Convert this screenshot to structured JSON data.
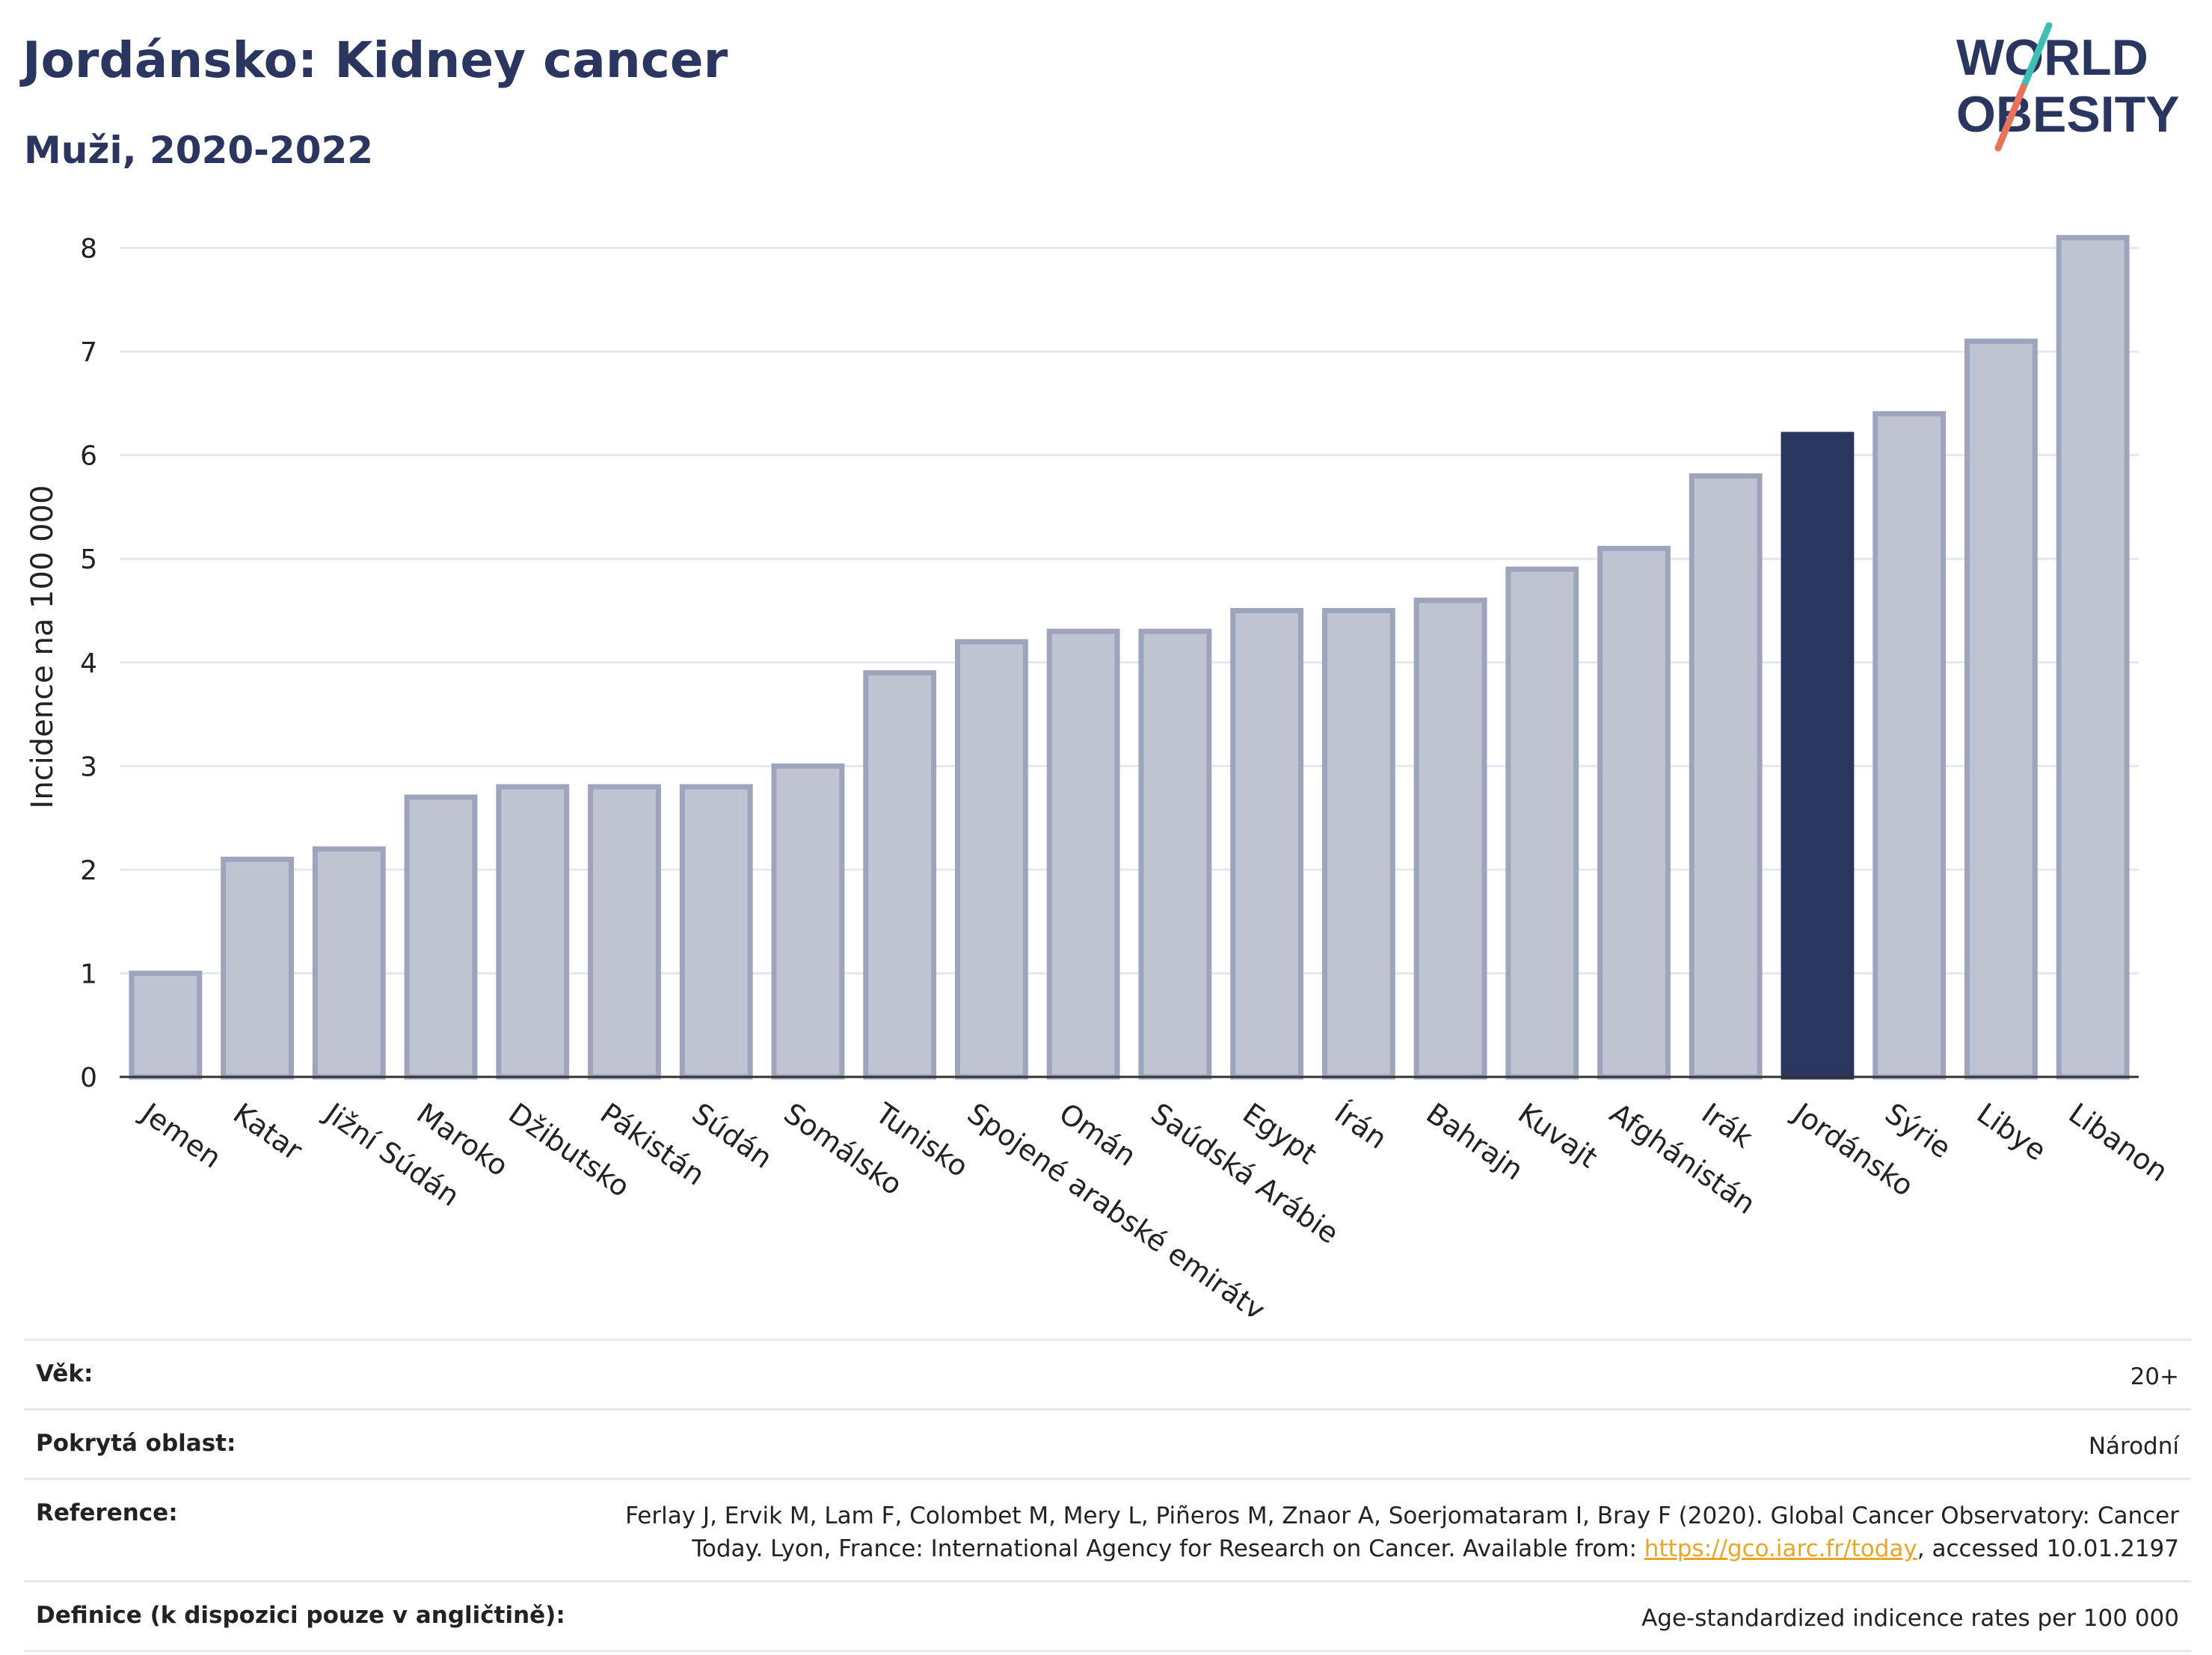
{
  "header": {
    "title": "Jordánsko: Kidney cancer",
    "subtitle": "Muži, 2020-2022"
  },
  "logo": {
    "line1": "WORLD",
    "line2": "OBESITY"
  },
  "colors": {
    "bar": "#bfc3d2",
    "bar_border": "#9ea4bc",
    "highlight": "#2a3560",
    "accent_teal": "#3fbfb4",
    "accent_coral": "#e8735a"
  },
  "chart_data": {
    "type": "bar",
    "ylabel": "Incidence na 100 000",
    "ylim": [
      0,
      8.3
    ],
    "yticks": [
      0,
      1,
      2,
      3,
      4,
      5,
      6,
      7,
      8
    ],
    "grid": true,
    "highlight": "Jordánsko",
    "categories": [
      "Jemen",
      "Katar",
      "Jižní Súdán",
      "Maroko",
      "Džibutsko",
      "Pákistán",
      "Súdán",
      "Somálsko",
      "Tunisko",
      "Spojené arabské emiráty",
      "Omán",
      "Saúdská Arábie",
      "Egypt",
      "Írán",
      "Bahrajn",
      "Kuvajt",
      "Afghánistán",
      "Irák",
      "Jordánsko",
      "Sýrie",
      "Libye",
      "Libanon"
    ],
    "values": [
      1.0,
      2.1,
      2.2,
      2.7,
      2.8,
      2.8,
      2.8,
      3.0,
      3.9,
      4.2,
      4.3,
      4.3,
      4.5,
      4.5,
      4.6,
      4.9,
      5.1,
      5.8,
      6.2,
      6.4,
      7.1,
      8.1
    ]
  },
  "info": {
    "age_label": "Věk:",
    "age_value": "20+",
    "area_label": "Pokrytá oblast:",
    "area_value": "Národní",
    "ref_label": "Reference:",
    "ref_line1": "Ferlay J, Ervik M, Lam F, Colombet M, Mery L, Piñeros M, Znaor A, Soerjomataram I, Bray F (2020). Global Cancer Observatory: Cancer",
    "ref_line2_pre": "Today. Lyon, France: International Agency for Research on Cancer. Available from: ",
    "ref_link": "https://gco.iarc.fr/today",
    "ref_line2_post": ", accessed 10.01.2197",
    "def_label": "Definice (k dispozici pouze v angličtině):",
    "def_value": "Age-standardized indicence rates per 100 000"
  }
}
